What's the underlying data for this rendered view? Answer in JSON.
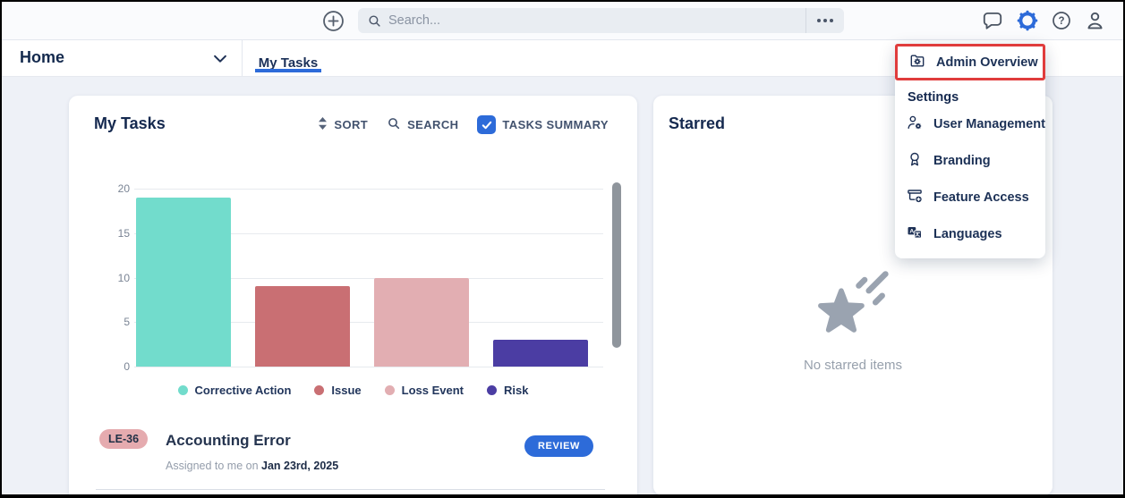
{
  "topbar": {
    "search_placeholder": "Search..."
  },
  "nav": {
    "home_label": "Home",
    "active_tab": "My Tasks"
  },
  "admin_menu": {
    "highlighted_item": {
      "label": "Admin Overview"
    },
    "section_header": "Settings",
    "items": [
      {
        "label": "User Management"
      },
      {
        "label": "Branding"
      },
      {
        "label": "Feature Access"
      },
      {
        "label": "Languages"
      }
    ],
    "highlight_color": "#e03c3c"
  },
  "my_tasks": {
    "title": "My Tasks",
    "sort_label": "SORT",
    "search_label": "SEARCH",
    "summary_label": "TASKS SUMMARY",
    "summary_checked": true,
    "task": {
      "badge": "LE-36",
      "title": "Accounting Error",
      "assigned_prefix": "Assigned to me on ",
      "assigned_date": "Jan 23rd, 2025",
      "action_label": "REVIEW"
    }
  },
  "starred": {
    "title": "Starred",
    "empty_text": "No starred items"
  },
  "chart_data": {
    "type": "bar",
    "categories": [
      "Corrective Action",
      "Issue",
      "Loss Event",
      "Risk"
    ],
    "values": [
      19,
      9,
      10,
      3
    ],
    "colors": [
      "#72dccc",
      "#c96f73",
      "#e2aeb2",
      "#4b3da3"
    ],
    "title": "",
    "xlabel": "",
    "ylabel": "",
    "ylim": [
      0,
      20
    ],
    "yticks": [
      0,
      5,
      10,
      15,
      20
    ],
    "grid": true,
    "legend_position": "bottom"
  },
  "colors": {
    "accent_blue": "#2d6bd9",
    "navy_text": "#15294f",
    "page_bg": "#eef1f7"
  }
}
